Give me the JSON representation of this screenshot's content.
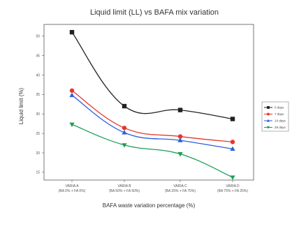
{
  "chart_data": {
    "type": "line",
    "title": "Liquid limit (LL) vs BAFA mix variation",
    "xlabel": "BAFA waste variation percentage (%)",
    "ylabel": "Liquid limit (%)",
    "categories": [
      "VARIA A",
      "VARIA B",
      "VARIA C",
      "VARIA D"
    ],
    "category_sublabels": [
      "(BA 0% + FA 0%)",
      "(BA 50% + FA 50%)",
      "(BA 25% + FA 75%)",
      "(BA 75% + FA 25%)"
    ],
    "yticks": [
      50,
      45,
      40,
      35,
      30,
      25,
      20,
      15
    ],
    "ylim": [
      13,
      53
    ],
    "grid": false,
    "legend_position": "right",
    "series": [
      {
        "name": "0 days",
        "color": "#222222",
        "marker": "square",
        "values": [
          51,
          32,
          31,
          28.7
        ]
      },
      {
        "name": "7 days",
        "color": "#e8362b",
        "marker": "circle",
        "values": [
          36,
          26.4,
          24.2,
          22.8
        ]
      },
      {
        "name": "14 days",
        "color": "#2b5fdc",
        "marker": "triangle-up",
        "values": [
          34.8,
          25.2,
          23.2,
          21
        ]
      },
      {
        "name": "28 days",
        "color": "#1d9e55",
        "marker": "triangle-down",
        "values": [
          27.3,
          22,
          19.7,
          13.7
        ]
      }
    ]
  }
}
